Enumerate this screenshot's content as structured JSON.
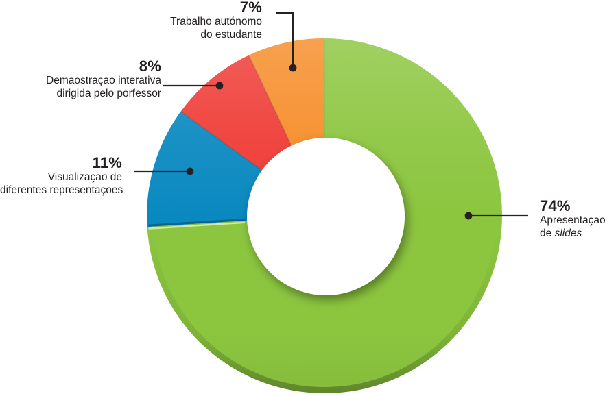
{
  "page": {
    "background": "#FFFFFF"
  },
  "chart_data": {
    "type": "pie",
    "subtype": "donut",
    "title": "",
    "categories": [
      "Apresentaçao de slides",
      "Visualizaçao de diferentes representaçoes",
      "Demaostraçao interativa dirigida pelo porfessor",
      "Trabalho autónomo do estudante"
    ],
    "values": [
      74,
      11,
      8,
      7
    ],
    "unit": "%",
    "colors": [
      "#8CC63F",
      "#0A89C0",
      "#EF3B35",
      "#F68C28"
    ],
    "start_angle_deg": 0,
    "direction": "clockwise",
    "inner_radius_ratio": 0.44,
    "hole_color": "#FFFFFF",
    "legend": "none",
    "label_style": "external callouts with leader lines and dots",
    "leader_line_color": "#262122",
    "text_color": "#231F20"
  },
  "callouts": [
    {
      "pct": "74%",
      "line1": "Apresentaçao",
      "line2": "de ",
      "line2_italic": "slides"
    },
    {
      "pct": "11%",
      "line1": "Visualizaçao de",
      "line2": "diferentes representaçoes"
    },
    {
      "pct": "8%",
      "line1": "Demaostraçao interativa",
      "line2": "dirigida pelo porfessor"
    },
    {
      "pct": "7%",
      "line1": "Trabalho autónomo",
      "line2": "do estudante"
    }
  ]
}
